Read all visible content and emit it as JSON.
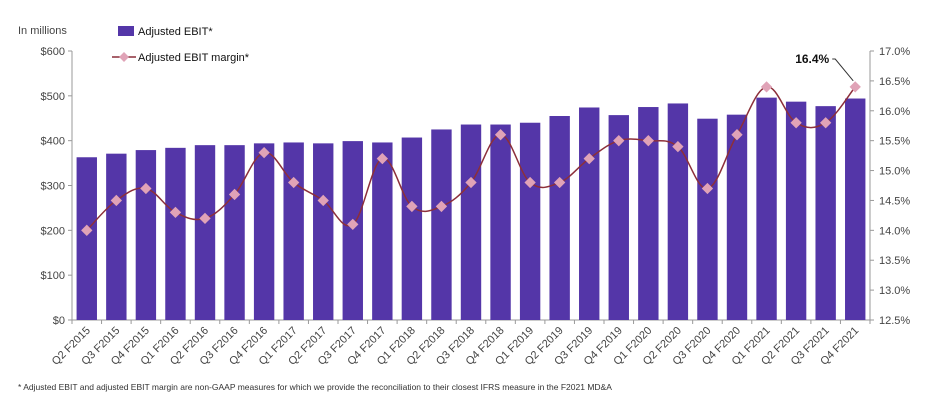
{
  "chart_data": {
    "type": "bar",
    "units_label": "In millions",
    "categories": [
      "Q2 F2015",
      "Q3 F2015",
      "Q4 F2015",
      "Q1 F2016",
      "Q2 F2016",
      "Q3 F2016",
      "Q4 F2016",
      "Q1 F2017",
      "Q2 F2017",
      "Q3 F2017",
      "Q4 F2017",
      "Q1 F2018",
      "Q2 F2018",
      "Q3 F2018",
      "Q4 F2018",
      "Q1 F2019",
      "Q2 F2019",
      "Q3 F2019",
      "Q4 F2019",
      "Q1 F2020",
      "Q2 F2020",
      "Q3 F2020",
      "Q4 F2020",
      "Q1 F2021",
      "Q2 F2021",
      "Q3 F2021",
      "Q4 F2021"
    ],
    "series": [
      {
        "name": "Adjusted EBIT*",
        "type": "bar",
        "axis": "left",
        "color": "#5436A8",
        "values": [
          363,
          371,
          379,
          384,
          390,
          390,
          394,
          396,
          394,
          399,
          396,
          407,
          425,
          436,
          436,
          440,
          455,
          474,
          457,
          475,
          483,
          449,
          458,
          496,
          487,
          477,
          494
        ]
      },
      {
        "name": "Adjusted EBIT margin*",
        "type": "line",
        "axis": "right",
        "line_color": "#8C2F3A",
        "marker_color": "#E0A3B7",
        "values": [
          14.0,
          14.5,
          14.7,
          14.3,
          14.2,
          14.6,
          15.3,
          14.8,
          14.5,
          14.1,
          15.2,
          14.4,
          14.4,
          14.8,
          15.6,
          14.8,
          14.8,
          15.2,
          15.5,
          15.5,
          15.4,
          14.7,
          15.6,
          16.4,
          15.8,
          15.8,
          16.4
        ]
      }
    ],
    "y_left": {
      "min": 0,
      "max": 600,
      "ticks": [
        0,
        100,
        200,
        300,
        400,
        500,
        600
      ],
      "tick_labels": [
        "$0",
        "$100",
        "$200",
        "$300",
        "$400",
        "$500",
        "$600"
      ]
    },
    "y_right": {
      "min": 12.5,
      "max": 17.0,
      "ticks": [
        12.5,
        13.0,
        13.5,
        14.0,
        14.5,
        15.0,
        15.5,
        16.0,
        16.5,
        17.0
      ],
      "tick_labels": [
        "12.5%",
        "13.0%",
        "13.5%",
        "14.0%",
        "14.5%",
        "15.0%",
        "15.5%",
        "16.0%",
        "16.5%",
        "17.0%"
      ]
    },
    "grid": false,
    "legend": {
      "placement": "top-left",
      "entries": [
        "Adjusted EBIT*",
        "Adjusted EBIT margin*"
      ]
    },
    "annotations": [
      {
        "text": "16.4%",
        "category": "Q4 F2021",
        "series": "Adjusted EBIT margin*"
      }
    ],
    "footnote": "* Adjusted EBIT and adjusted EBIT margin are non-GAAP measures for which we provide the reconciliation to their closest IFRS measure in the F2021 MD&A"
  }
}
